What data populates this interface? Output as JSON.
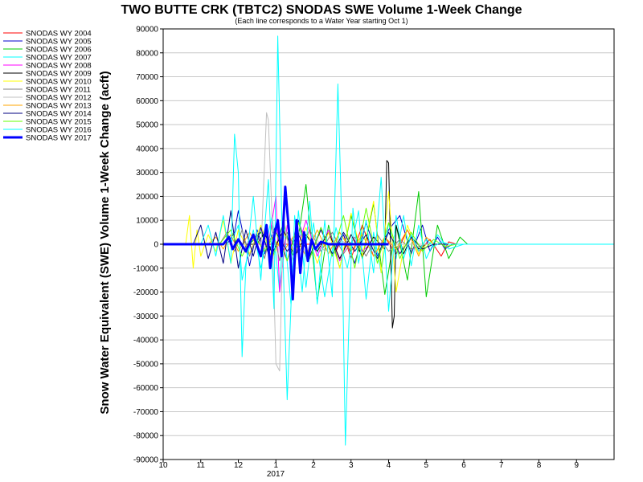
{
  "chart_data": {
    "type": "line",
    "title": "TWO BUTTE CRK (TBTC2) SNODAS SWE Volume 1-Week Change",
    "subtitle": "(Each line corresponds to a Water Year starting Oct 1)",
    "ylabel": "Snow Water Equivalent (SWE) Volume 1-Week Change (acft)",
    "xlabel": "",
    "x_year_label": "2017",
    "ylim": [
      -90000,
      90000
    ],
    "xlim": [
      10,
      22
    ],
    "y_ticks": [
      90000,
      80000,
      70000,
      60000,
      50000,
      40000,
      30000,
      20000,
      10000,
      0,
      -10000,
      -20000,
      -30000,
      -40000,
      -50000,
      -60000,
      -70000,
      -80000,
      -90000
    ],
    "y_tick_labels": [
      "90000",
      "80000",
      "70000",
      "60000",
      "50000",
      "40000",
      "30000",
      "20000",
      "10000",
      "0",
      "-10000",
      "-20000",
      "-30000",
      "-40000",
      "-50000",
      "-60000",
      "-70000",
      "-80000",
      "-90000"
    ],
    "x_ticks": [
      10,
      11,
      12,
      13,
      14,
      15,
      16,
      17,
      18,
      19,
      20,
      21
    ],
    "x_tick_labels": [
      "10",
      "11",
      "12",
      "1",
      "2",
      "3",
      "4",
      "5",
      "6",
      "7",
      "8",
      "9"
    ],
    "grid": true,
    "legend_position": "top-left outside",
    "series": [
      {
        "name": "SNODAS WY 2004",
        "color": "#ff0000",
        "width": 1,
        "x": [
          10,
          14.5,
          14.6,
          14.8,
          15.0,
          15.3,
          15.6,
          15.9,
          16.2,
          16.5,
          16.8,
          17.1,
          17.4,
          17.6,
          17.8,
          22
        ],
        "y": [
          0,
          0,
          -3000,
          4000,
          -6000,
          8000,
          -5000,
          3000,
          -4000,
          6000,
          -3000,
          2000,
          -5000,
          1000,
          0,
          0
        ]
      },
      {
        "name": "SNODAS WY 2005",
        "color": "#0000cc",
        "width": 1,
        "x": [
          10,
          11.7,
          11.9,
          12.0,
          12.3,
          12.5,
          12.7,
          13.0,
          13.3,
          13.6,
          13.9,
          14.2,
          14.5,
          14.8,
          15.1,
          15.4,
          15.7,
          16.0,
          16.3,
          16.6,
          16.9,
          17.1,
          17.3,
          17.5,
          17.7,
          22
        ],
        "y": [
          0,
          0,
          5000,
          14000,
          -9000,
          6000,
          -4000,
          8000,
          -7000,
          10000,
          -6000,
          7000,
          -5000,
          4000,
          -8000,
          9000,
          -5000,
          6000,
          12000,
          -4000,
          8000,
          -3000,
          3000,
          -2000,
          0,
          0
        ]
      },
      {
        "name": "SNODAS WY 2006",
        "color": "#00cc00",
        "width": 1,
        "x": [
          10,
          12.3,
          12.6,
          12.9,
          13.2,
          13.5,
          13.8,
          14.1,
          14.4,
          14.7,
          15.0,
          15.3,
          15.6,
          15.9,
          16.2,
          16.5,
          16.8,
          17.0,
          17.3,
          17.6,
          17.9,
          18.1,
          18.3,
          22
        ],
        "y": [
          0,
          0,
          5000,
          -6000,
          9000,
          -8000,
          25000,
          -24000,
          8000,
          -10000,
          12000,
          -6000,
          17000,
          -21000,
          8000,
          -15000,
          22000,
          -22000,
          8000,
          -6000,
          3000,
          0,
          0,
          0
        ]
      },
      {
        "name": "SNODAS WY 2007",
        "color": "#00ffff",
        "width": 1,
        "x": [
          10,
          11.8,
          12.0,
          12.1,
          12.4,
          12.6,
          12.9,
          13.1,
          13.2,
          13.4,
          13.6,
          13.8,
          14.0,
          14.3,
          14.6,
          14.9,
          15.2,
          15.4,
          15.6,
          15.8,
          16.0,
          16.2,
          16.4,
          16.6,
          16.8,
          17.0,
          17.3,
          17.6,
          18.0,
          22
        ],
        "y": [
          0,
          0,
          8000,
          -15000,
          6000,
          -10000,
          12000,
          -20000,
          10000,
          -25000,
          14000,
          -18000,
          9000,
          -22000,
          7000,
          -10000,
          14000,
          -23000,
          5000,
          -12000,
          9000,
          -6000,
          12000,
          -9000,
          8000,
          -6000,
          4000,
          -2000,
          0,
          0
        ]
      },
      {
        "name": "SNODAS WY 2008",
        "color": "#ff00ff",
        "width": 1,
        "x": [
          10,
          12.8,
          13.0,
          13.1,
          13.3,
          13.5,
          13.8,
          14.1,
          14.4,
          14.7,
          15.0,
          15.3,
          15.5,
          22
        ],
        "y": [
          0,
          0,
          20000,
          -20000,
          8000,
          -6000,
          10000,
          -5000,
          6000,
          -7000,
          4000,
          -3000,
          0,
          0
        ]
      },
      {
        "name": "SNODAS WY 2009",
        "color": "#000000",
        "width": 1,
        "x": [
          10,
          12.5,
          12.7,
          12.9,
          13.2,
          13.5,
          13.8,
          14.1,
          14.4,
          14.7,
          15.0,
          15.3,
          15.6,
          15.9,
          15.95,
          16.0,
          16.05,
          16.1,
          16.15,
          16.2,
          16.4,
          16.6,
          16.8,
          17.0,
          22
        ],
        "y": [
          0,
          0,
          5000,
          -4000,
          6000,
          -5000,
          4000,
          -3000,
          5000,
          -6000,
          4000,
          -5000,
          3000,
          -2000,
          35000,
          34000,
          0,
          -35000,
          -30000,
          8000,
          -4000,
          3000,
          -2000,
          0,
          0
        ]
      },
      {
        "name": "SNODAS WY 2010",
        "color": "#ffff00",
        "width": 1,
        "x": [
          10,
          10.6,
          10.7,
          10.8,
          10.9,
          11.0,
          11.2,
          11.4,
          11.6,
          11.8,
          12.0,
          12.3,
          12.6,
          12.9,
          13.2,
          13.5,
          13.8,
          14.1,
          14.4,
          14.7,
          15.0,
          15.3,
          15.6,
          15.8,
          16.0,
          16.2,
          16.5,
          16.8,
          17.0,
          22
        ],
        "y": [
          0,
          0,
          12000,
          -10000,
          6000,
          -5000,
          4000,
          -3000,
          10000,
          -8000,
          6000,
          -4000,
          8000,
          -6000,
          5000,
          -4000,
          7000,
          -8000,
          5000,
          -10000,
          13000,
          -5000,
          18000,
          -12000,
          22000,
          -20000,
          8000,
          -4000,
          0,
          0
        ]
      },
      {
        "name": "SNODAS WY 2011",
        "color": "#808080",
        "width": 1,
        "x": [
          10,
          11.5,
          11.7,
          11.9,
          12.1,
          12.3,
          12.5,
          12.7,
          12.9,
          13.1,
          13.3,
          13.6,
          13.9,
          14.2,
          14.5,
          14.8,
          15.1,
          15.4,
          15.7,
          16.0,
          16.3,
          16.6,
          17.0,
          22
        ],
        "y": [
          0,
          0,
          5000,
          -3000,
          6000,
          -5000,
          4000,
          -6000,
          8000,
          -7000,
          5000,
          -4000,
          6000,
          -3000,
          5000,
          -4000,
          3000,
          -5000,
          4000,
          -3000,
          2000,
          -2000,
          0,
          0
        ]
      },
      {
        "name": "SNODAS WY 2012",
        "color": "#c0c0c0",
        "width": 1,
        "x": [
          10,
          12.2,
          12.4,
          12.6,
          12.75,
          12.8,
          12.9,
          13.0,
          13.1,
          13.2,
          13.4,
          13.6,
          13.8,
          14.0,
          14.3,
          14.6,
          15.0,
          22
        ],
        "y": [
          0,
          0,
          4000,
          -5000,
          55000,
          52000,
          10000,
          -50000,
          -53000,
          12000,
          -8000,
          6000,
          -5000,
          4000,
          -3000,
          2000,
          0,
          0
        ]
      },
      {
        "name": "SNODAS WY 2013",
        "color": "#ffa500",
        "width": 1,
        "x": [
          10,
          11.2,
          11.4,
          11.6,
          11.8,
          12.0,
          12.3,
          12.6,
          12.9,
          13.2,
          13.5,
          13.8,
          14.1,
          14.4,
          14.7,
          15.0,
          15.3,
          15.6,
          15.9,
          16.2,
          16.5,
          16.8,
          17.0,
          17.2,
          22
        ],
        "y": [
          0,
          0,
          3000,
          -2000,
          4000,
          -3000,
          5000,
          -4000,
          3000,
          -3000,
          4000,
          -5000,
          6000,
          -4000,
          5000,
          -3000,
          4000,
          -5000,
          3000,
          -2000,
          6000,
          -5000,
          3000,
          0,
          0
        ]
      },
      {
        "name": "SNODAS WY 2014",
        "color": "#000080",
        "width": 1,
        "x": [
          10,
          10.8,
          11.0,
          11.2,
          11.4,
          11.6,
          11.8,
          12.0,
          12.2,
          12.4,
          12.6,
          12.8,
          13.0,
          13.3,
          13.6,
          13.9,
          14.2,
          14.5,
          14.8,
          15.1,
          15.4,
          15.7,
          16.0,
          16.3,
          16.6,
          16.9,
          17.2,
          22
        ],
        "y": [
          0,
          0,
          8000,
          -6000,
          5000,
          -8000,
          14000,
          -10000,
          6000,
          -5000,
          7000,
          -4000,
          5000,
          -3000,
          4000,
          -5000,
          6000,
          -4000,
          5000,
          -3000,
          4000,
          -6000,
          5000,
          -4000,
          3000,
          -2000,
          0,
          0
        ]
      },
      {
        "name": "SNODAS WY 2015",
        "color": "#66ff00",
        "width": 1,
        "x": [
          10,
          11.5,
          11.8,
          12.1,
          12.4,
          12.7,
          13.0,
          13.3,
          13.6,
          13.9,
          14.2,
          14.5,
          14.8,
          15.1,
          15.4,
          15.7,
          16.0,
          16.3,
          16.6,
          16.9,
          17.2,
          17.5,
          17.8,
          22
        ],
        "y": [
          0,
          0,
          6000,
          -5000,
          4000,
          -3000,
          5000,
          -7000,
          9000,
          -6000,
          7000,
          -5000,
          12000,
          -10000,
          15000,
          -8000,
          9000,
          -6000,
          5000,
          -3000,
          2000,
          -1000,
          0,
          0
        ]
      },
      {
        "name": "SNODAS WY 2016",
        "color": "#00ffff",
        "width": 1,
        "x": [
          10,
          11.0,
          11.2,
          11.4,
          11.6,
          11.8,
          11.9,
          12.0,
          12.1,
          12.2,
          12.4,
          12.6,
          12.8,
          12.95,
          13.05,
          13.15,
          13.3,
          13.5,
          13.7,
          13.9,
          14.1,
          14.3,
          14.5,
          14.65,
          14.75,
          14.85,
          14.95,
          15.05,
          15.2,
          15.4,
          15.6,
          15.8,
          16.0,
          16.2,
          16.4,
          16.6,
          16.8,
          17.0,
          17.2,
          17.4,
          17.6,
          17.8,
          18.0,
          22
        ],
        "y": [
          0,
          0,
          8000,
          -5000,
          12000,
          -8000,
          46000,
          30000,
          -47000,
          -10000,
          20000,
          -15000,
          27000,
          -27000,
          87000,
          15000,
          -65000,
          12000,
          -20000,
          18000,
          -25000,
          10000,
          -22000,
          67000,
          10000,
          -84000,
          -30000,
          15000,
          -8000,
          10000,
          -12000,
          28000,
          -28000,
          12000,
          -6000,
          4000,
          -3000,
          2000,
          -1000,
          1000,
          0,
          0,
          0,
          0
        ]
      },
      {
        "name": "SNODAS WY 2017",
        "color": "#0000ff",
        "width": 3,
        "x": [
          10,
          11.6,
          11.75,
          11.85,
          12.0,
          12.2,
          12.4,
          12.6,
          12.75,
          12.85,
          12.95,
          13.05,
          13.15,
          13.25,
          13.35,
          13.45,
          13.55,
          13.65,
          13.75,
          13.85,
          13.95,
          14.05,
          14.2,
          14.4,
          14.6,
          14.8,
          15.0,
          15.2,
          15.4,
          15.6,
          15.8,
          16.0
        ],
        "y": [
          0,
          0,
          3000,
          -2000,
          2000,
          -3000,
          4000,
          -5000,
          8000,
          -10000,
          3000,
          10000,
          -5000,
          24000,
          5000,
          -23000,
          10000,
          -12000,
          5000,
          -7000,
          2000,
          -2000,
          1000,
          0,
          0,
          0,
          0,
          0,
          0,
          0,
          0,
          0
        ]
      }
    ]
  }
}
